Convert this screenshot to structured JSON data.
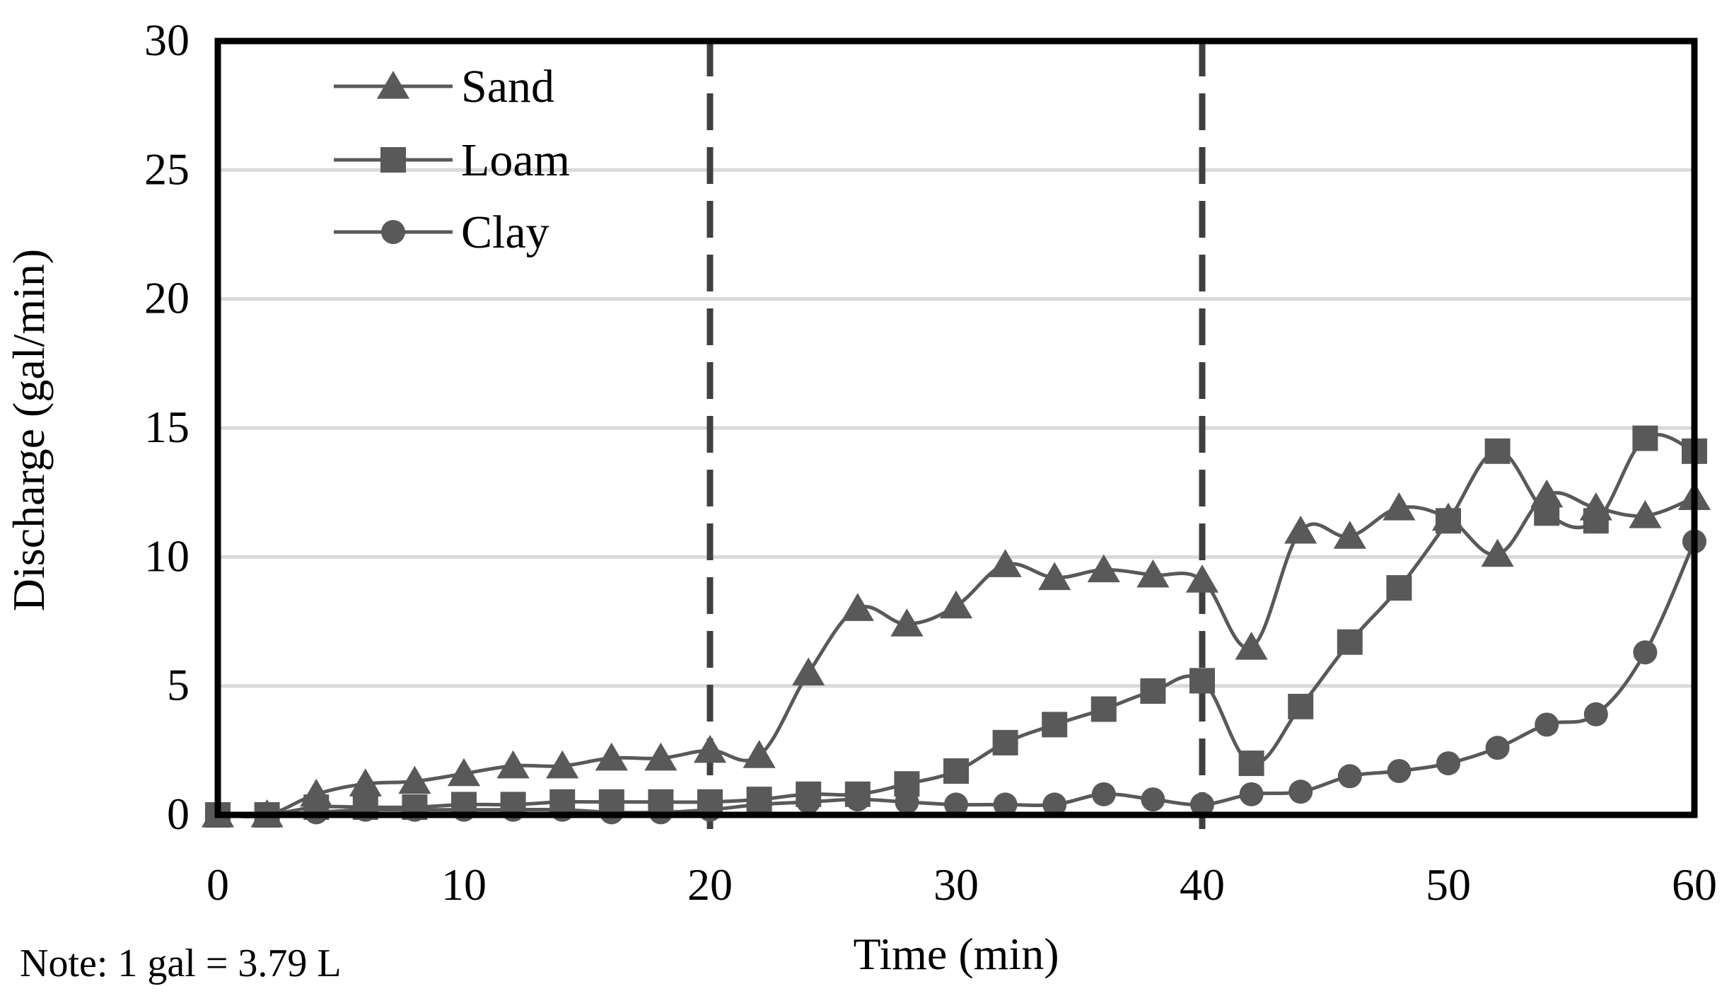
{
  "chart_data": {
    "type": "line",
    "title": "",
    "xlabel": "Time (min)",
    "ylabel": "Discharge (gal/min)",
    "xlim": [
      0,
      60
    ],
    "ylim": [
      0,
      30
    ],
    "x_ticks": [
      "0",
      "10",
      "20",
      "30",
      "40",
      "50",
      "60"
    ],
    "y_ticks": [
      "0",
      "5",
      "10",
      "15",
      "20",
      "25",
      "30"
    ],
    "grid": true,
    "legend_position": "top-left",
    "vertical_reference_lines": [
      20,
      40
    ],
    "note": "Note: 1 gal = 3.79 L",
    "x": [
      0,
      2,
      4,
      6,
      8,
      10,
      12,
      14,
      16,
      18,
      20,
      22,
      24,
      26,
      28,
      30,
      32,
      34,
      36,
      38,
      40,
      42,
      44,
      46,
      48,
      50,
      52,
      54,
      56,
      58,
      60
    ],
    "series": [
      {
        "name": "Sand",
        "marker": "triangle",
        "values": [
          0,
          0,
          0.8,
          1.2,
          1.3,
          1.6,
          1.9,
          1.9,
          2.2,
          2.2,
          2.5,
          2.3,
          5.5,
          8.0,
          7.4,
          8.1,
          9.7,
          9.2,
          9.5,
          9.3,
          9.1,
          6.5,
          11.0,
          10.8,
          11.9,
          11.5,
          10.1,
          12.4,
          11.9,
          11.6,
          12.3
        ]
      },
      {
        "name": "Loam",
        "marker": "square",
        "values": [
          0,
          0,
          0.3,
          0.3,
          0.3,
          0.4,
          0.4,
          0.5,
          0.5,
          0.5,
          0.5,
          0.6,
          0.8,
          0.8,
          1.2,
          1.7,
          2.8,
          3.5,
          4.1,
          4.8,
          5.2,
          2.0,
          4.2,
          6.7,
          8.8,
          11.4,
          14.1,
          11.7,
          11.4,
          14.6,
          14.1
        ]
      },
      {
        "name": "Clay",
        "marker": "circle",
        "values": [
          0,
          0,
          0.1,
          0.2,
          0.2,
          0.2,
          0.2,
          0.2,
          0.1,
          0.1,
          0.2,
          0.4,
          0.5,
          0.6,
          0.5,
          0.4,
          0.4,
          0.4,
          0.8,
          0.6,
          0.4,
          0.8,
          0.9,
          1.5,
          1.7,
          2.0,
          2.6,
          3.5,
          3.9,
          6.3,
          10.6
        ]
      }
    ]
  }
}
